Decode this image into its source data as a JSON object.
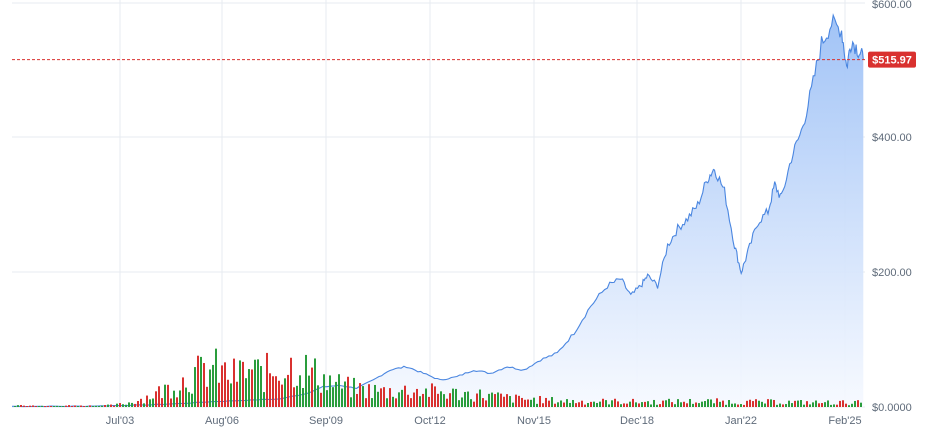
{
  "chart_data": {
    "type": "area",
    "x_tick_labels": [
      "Jul'03",
      "Aug'06",
      "Sep'09",
      "Oct'12",
      "Nov'15",
      "Dec'18",
      "Jan'22",
      "Feb'25"
    ],
    "y_tick_labels": [
      "$600.00",
      "$400.00",
      "$200.00",
      "$0.0000"
    ],
    "ylim": [
      0,
      600
    ],
    "x_range_years": [
      2000.0,
      2025.5
    ],
    "grid": true,
    "current_price_label": "$515.97",
    "current_price": 515.97,
    "price_series": {
      "x_year": [
        2000.0,
        2001.0,
        2002.0,
        2003.0,
        2004.0,
        2005.0,
        2006.0,
        2007.0,
        2008.0,
        2008.8,
        2009.3,
        2009.8,
        2010.3,
        2010.8,
        2011.3,
        2011.8,
        2012.3,
        2012.8,
        2013.3,
        2013.8,
        2014.3,
        2014.8,
        2015.3,
        2015.8,
        2016.3,
        2016.8,
        2017.3,
        2017.8,
        2018.2,
        2018.5,
        2018.8,
        2019.0,
        2019.3,
        2019.6,
        2019.9,
        2020.2,
        2020.5,
        2020.8,
        2021.0,
        2021.3,
        2021.6,
        2021.8,
        2022.0,
        2022.3,
        2022.6,
        2022.8,
        2023.0,
        2023.3,
        2023.6,
        2023.9,
        2024.2,
        2024.5,
        2024.8,
        2024.95,
        2025.1,
        2025.3,
        2025.45
      ],
      "price": [
        1,
        1,
        1,
        2,
        3,
        5,
        8,
        10,
        12,
        20,
        30,
        32,
        28,
        40,
        55,
        60,
        50,
        40,
        45,
        55,
        50,
        60,
        55,
        70,
        80,
        110,
        150,
        180,
        190,
        165,
        180,
        195,
        180,
        240,
        265,
        280,
        300,
        340,
        355,
        320,
        240,
        200,
        230,
        275,
        290,
        330,
        310,
        370,
        410,
        470,
        540,
        570,
        560,
        505,
        545,
        530,
        516
      ]
    },
    "volume_series": {
      "x_year": [
        2002.0,
        2003.0,
        2003.5,
        2004.0,
        2004.5,
        2005.0,
        2005.5,
        2006.0,
        2006.5,
        2007.0,
        2007.5,
        2008.0,
        2008.5,
        2009.0,
        2009.5,
        2010.0,
        2011.0,
        2012.0,
        2013.0,
        2014.0,
        2015.0,
        2016.0,
        2017.0,
        2018.0,
        2019.0,
        2020.0,
        2021.0,
        2022.0,
        2023.0,
        2024.0,
        2025.0
      ],
      "volume": [
        2,
        3,
        8,
        18,
        30,
        45,
        60,
        70,
        55,
        65,
        60,
        70,
        75,
        60,
        45,
        35,
        28,
        30,
        25,
        22,
        15,
        12,
        10,
        10,
        9,
        10,
        10,
        9,
        9,
        8,
        8
      ]
    },
    "colors": {
      "line": "#4a86e0",
      "area_top": "#9cc0f6",
      "area_bottom": "#f6f9ff",
      "grid": "#e7ebf0",
      "volume_up": "#2a9d3c",
      "volume_down": "#d9312f",
      "price_tag": "#d9312f",
      "price_line": "#d9312f"
    }
  }
}
